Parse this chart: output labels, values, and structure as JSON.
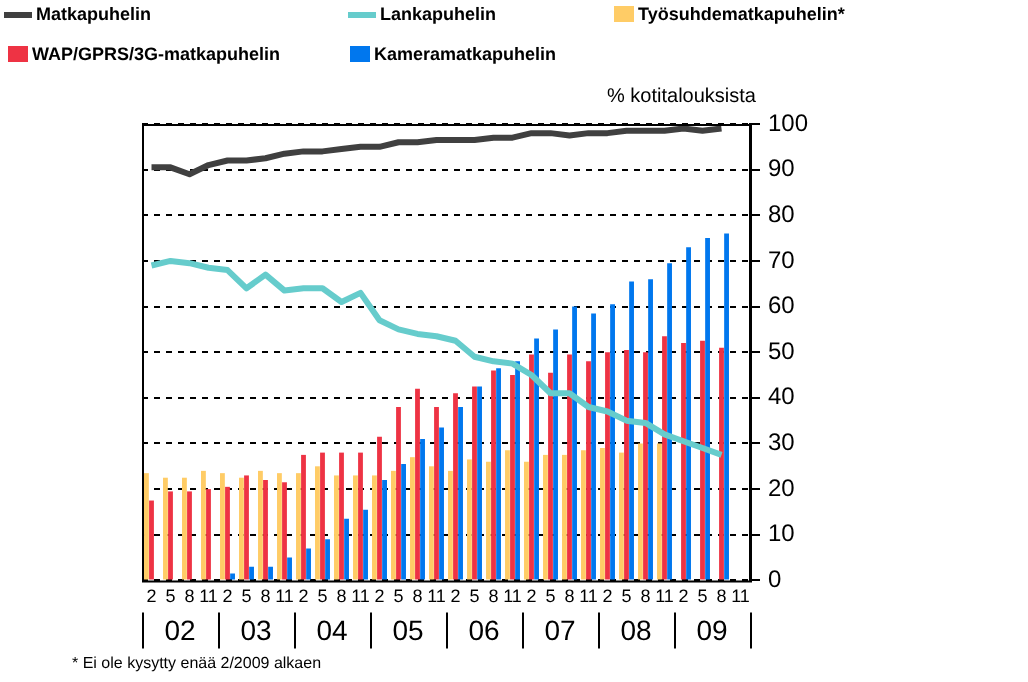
{
  "chart_data": {
    "type": "bar",
    "ylabel": "% kotitalouksista",
    "categories": [
      "2",
      "5",
      "8",
      "11",
      "2",
      "5",
      "8",
      "11",
      "2",
      "5",
      "8",
      "11",
      "2",
      "5",
      "8",
      "11",
      "2",
      "5",
      "8",
      "11",
      "2",
      "5",
      "8",
      "11",
      "2",
      "5",
      "8",
      "11",
      "2",
      "5",
      "8",
      "11"
    ],
    "series": [
      {
        "name": "Matkapuhelin",
        "type": "line",
        "color": "#404040",
        "values": [
          90.5,
          90.5,
          89,
          91,
          92,
          92,
          92.5,
          93.5,
          94,
          94,
          94.5,
          95,
          95,
          96,
          96,
          96.5,
          96.5,
          96.5,
          97,
          97,
          98,
          98,
          97.5,
          98,
          98,
          98.5,
          98.5,
          98.5,
          99,
          98.5,
          99,
          null
        ]
      },
      {
        "name": "Lankapuhelin",
        "type": "line",
        "color": "#66cccc",
        "values": [
          69,
          70,
          69.5,
          68.5,
          68,
          64,
          67,
          63.5,
          64,
          64,
          61,
          63,
          57,
          55,
          54,
          53.5,
          52.5,
          49,
          48,
          47.5,
          45,
          41,
          41,
          38,
          37,
          35,
          34.5,
          32,
          30.5,
          29,
          27.5,
          null
        ]
      },
      {
        "name": "Työsuhdematkapuhelin*",
        "color": "#ffcc66",
        "values": [
          23.5,
          22.5,
          22.5,
          24,
          23.5,
          22.5,
          24,
          23.5,
          23.5,
          25,
          23,
          23,
          23,
          24,
          27,
          25,
          24,
          26.5,
          26,
          28.5,
          26,
          27.5,
          27.5,
          28.5,
          29,
          28,
          30,
          30,
          null,
          null,
          null,
          null
        ]
      },
      {
        "name": "WAP/GPRS/3G-matkapuhelin",
        "color": "#ee3344",
        "values": [
          17.5,
          19.5,
          19.5,
          20,
          20.5,
          23,
          22,
          21.5,
          27.5,
          28,
          28,
          28,
          31.5,
          38,
          42,
          38,
          41,
          42.5,
          46,
          45,
          49.5,
          45.5,
          49.5,
          48,
          50,
          50.5,
          50,
          53.5,
          52,
          52.5,
          51,
          null
        ]
      },
      {
        "name": "Kameramatkapuhelin",
        "color": "#0077ee",
        "values": [
          null,
          null,
          null,
          null,
          1.5,
          3,
          3,
          5,
          7,
          9,
          13.5,
          15.5,
          22,
          25.5,
          31,
          33.5,
          38,
          42.5,
          46.5,
          48,
          53,
          55,
          60,
          58.5,
          60.5,
          65.5,
          66,
          69.5,
          73,
          75,
          76,
          null
        ]
      }
    ],
    "ylim": [
      0,
      100
    ],
    "yticks": [
      0,
      10,
      20,
      30,
      40,
      50,
      60,
      70,
      80,
      90,
      100
    ],
    "grid": "y",
    "legend": "top",
    "marker": "none",
    "annotations": [
      "02",
      "03",
      "04",
      "05",
      "06",
      "07",
      "08",
      "09",
      "* Ei ole kysytty enää 2/2009 alkaen"
    ]
  }
}
